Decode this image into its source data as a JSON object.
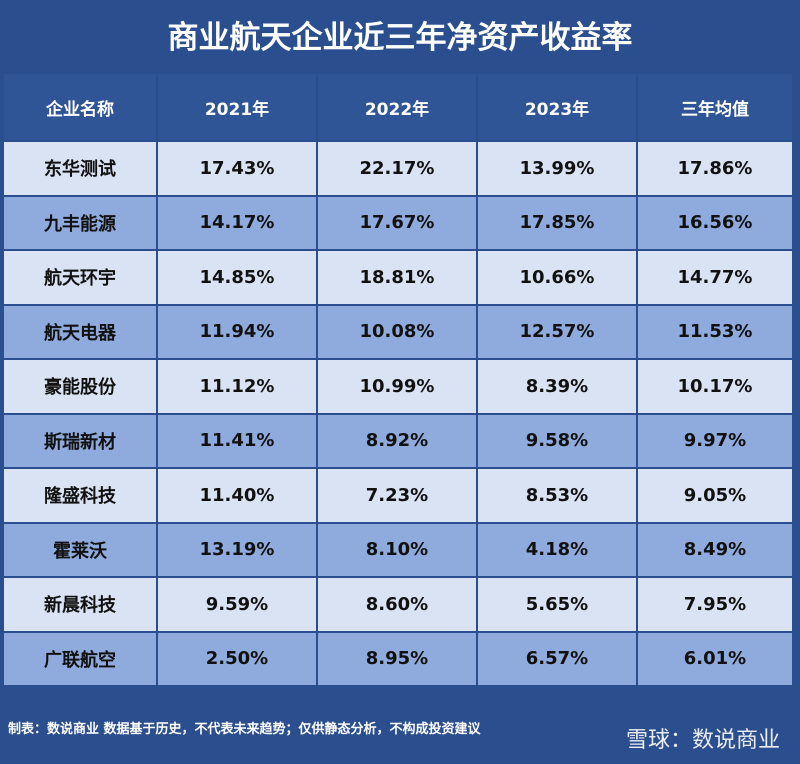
{
  "header": {
    "title": "商业航天企业近三年净资产收益率"
  },
  "table": {
    "columns": [
      "企业名称",
      "2021年",
      "2022年",
      "2023年",
      "三年均值"
    ],
    "rows": [
      [
        "东华测试",
        "17.43%",
        "22.17%",
        "13.99%",
        "17.86%"
      ],
      [
        "九丰能源",
        "14.17%",
        "17.67%",
        "17.85%",
        "16.56%"
      ],
      [
        "航天环宇",
        "14.85%",
        "18.81%",
        "10.66%",
        "14.77%"
      ],
      [
        "航天电器",
        "11.94%",
        "10.08%",
        "12.57%",
        "11.53%"
      ],
      [
        "豪能股份",
        "11.12%",
        "10.99%",
        "8.39%",
        "10.17%"
      ],
      [
        "斯瑞新材",
        "11.41%",
        "8.92%",
        "9.58%",
        "9.97%"
      ],
      [
        "隆盛科技",
        "11.40%",
        "7.23%",
        "8.53%",
        "9.05%"
      ],
      [
        "霍莱沃",
        "13.19%",
        "8.10%",
        "4.18%",
        "8.49%"
      ],
      [
        "新晨科技",
        "9.59%",
        "8.60%",
        "5.65%",
        "7.95%"
      ],
      [
        "广联航空",
        "2.50%",
        "8.95%",
        "6.57%",
        "6.01%"
      ]
    ]
  },
  "footer": {
    "note": "制表：数说商业 数据基于历史，不代表未来趋势；仅供静态分析，不构成投资建议",
    "watermark": "雪球：数说商业"
  }
}
